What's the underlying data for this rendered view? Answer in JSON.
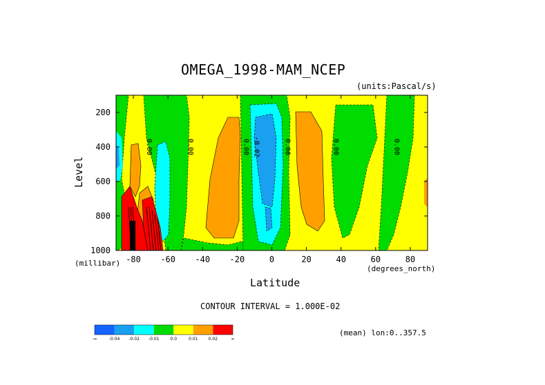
{
  "figure": {
    "title": "OMEGA_1998-MAM_NCEP",
    "units": "(units:Pascal/s)",
    "contour_interval": "CONTOUR INTERVAL = 1.000E-02",
    "mean_note": "(mean) lon:0..357.5",
    "y_unit": "(millibar)",
    "x_unit": "(degrees_north)"
  },
  "chart_data": {
    "type": "heatmap",
    "title": "OMEGA_1998-MAM_NCEP",
    "xlabel": "Latitude",
    "ylabel": "Level",
    "xlim": [
      -90,
      90
    ],
    "ylim": [
      1000,
      100
    ],
    "x_ticks": [
      -80,
      -60,
      -40,
      -20,
      0,
      20,
      40,
      60,
      80
    ],
    "y_ticks": [
      200,
      400,
      600,
      800,
      1000
    ],
    "legend": {
      "placement": "bottom-left",
      "colors": [
        "#1464ff",
        "#19a0f0",
        "#00ffff",
        "#00dc00",
        "#ffff00",
        "#ffa000",
        "#ff0000"
      ],
      "labels": [
        "-∞",
        "-0.04",
        "-0.02",
        "-0.01",
        "0.0",
        "0.01",
        "0.02",
        "∞"
      ]
    },
    "contour_labels": [
      {
        "lat": -72,
        "level": 400,
        "text": "0.00"
      },
      {
        "lat": -48,
        "level": 400,
        "text": "0.00"
      },
      {
        "lat": -16,
        "level": 400,
        "text": "0.00"
      },
      {
        "lat": -10,
        "level": 400,
        "text": "-0.02"
      },
      {
        "lat": 8,
        "level": 400,
        "text": "0.00"
      },
      {
        "lat": 36,
        "level": 400,
        "text": "0.00"
      },
      {
        "lat": 71,
        "level": 400,
        "text": "0.00"
      }
    ],
    "regions": [
      {
        "range": [
          0,
          0.01
        ],
        "desc": "background yellow"
      },
      {
        "range": [
          -0.01,
          0
        ],
        "lat_band": [
          -88,
          -82
        ],
        "desc": "green descent strip"
      },
      {
        "range": [
          -0.01,
          0
        ],
        "lat_band": [
          -55,
          -40
        ],
        "desc": "green band"
      },
      {
        "range": [
          -0.04,
          -0.01
        ],
        "lat_band": [
          -12,
          5
        ],
        "desc": "ascending tropical core"
      },
      {
        "range": [
          0.01,
          0.02
        ],
        "lat_band": [
          -35,
          -18
        ],
        "desc": "orange subsidence"
      },
      {
        "range": [
          0.01,
          0.02
        ],
        "lat_band": [
          12,
          30
        ],
        "desc": "orange subsidence"
      },
      {
        "range": [
          -0.01,
          0
        ],
        "lat_band": [
          35,
          50
        ],
        "desc": "green band"
      },
      {
        "range": [
          -0.01,
          0
        ],
        "lat_band": [
          70,
          82
        ],
        "desc": "green band"
      },
      {
        "range": [
          0.02,
          1
        ],
        "lat_band": [
          -85,
          -75
        ],
        "desc": "strong descent near Antarctica"
      }
    ]
  }
}
